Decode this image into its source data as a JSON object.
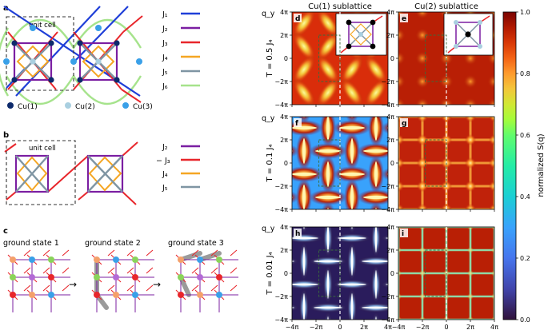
{
  "colors": {
    "J1": "#1f3fd8",
    "J2": "#7b1fa2",
    "J3": "#e8262b",
    "J4": "#f5a623",
    "J5": "#7f95a3",
    "J6": "#a6e38c",
    "cu1": "#0d2a6b",
    "cu2": "#a9cfe0",
    "cu3": "#3aa0e8",
    "dashed": "#444444"
  },
  "panel_a": {
    "letter": "a",
    "unit_cell": "unit cell",
    "legend": [
      "J₁",
      "J₂",
      "J₃",
      "J₄",
      "J₅",
      "J₆"
    ],
    "atoms": [
      "Cu(1)",
      "Cu(2)",
      "Cu(3)"
    ]
  },
  "panel_b": {
    "letter": "b",
    "unit_cell": "unit cell",
    "legend": [
      "J₂",
      "− J₃",
      "J₄",
      "J₅"
    ]
  },
  "panel_c": {
    "letter": "c",
    "states": [
      "ground state 1",
      "ground state 2",
      "ground state 3"
    ],
    "arrow": "→"
  },
  "maps": {
    "col_titles": [
      "Cu(1) sublattice",
      "Cu(2) sublattice"
    ],
    "row_labels": [
      "T = 0.5 J₄",
      "T = 0.1 J₄",
      "T = 0.01 J₄"
    ],
    "panel_letters": [
      "d",
      "e",
      "f",
      "g",
      "h",
      "i"
    ],
    "x_ticks": [
      "−4π",
      "−2π",
      "0",
      "2π",
      "4π"
    ],
    "y_ticks": [
      "4π",
      "2π",
      "0",
      "−2π",
      "−4π"
    ],
    "xlabel": "qₓ",
    "ylabel": "q_y"
  },
  "colorbar": {
    "label": "normalized S(q)",
    "ticks": [
      "1.0",
      "0.8",
      "0.6",
      "0.4",
      "0.2",
      "0.0"
    ]
  }
}
